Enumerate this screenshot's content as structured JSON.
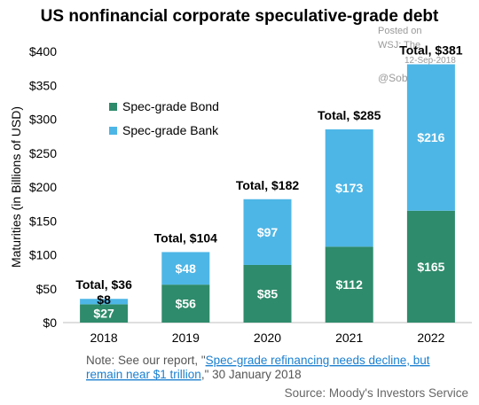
{
  "chart_data": {
    "type": "bar",
    "stacked": true,
    "title": "US nonfinancial corporate speculative-grade debt",
    "ylabel": "Maturities (in Billions of USD)",
    "xlabel": "",
    "ylim": [
      0,
      400
    ],
    "yticks": [
      "$0",
      "$50",
      "$100",
      "$150",
      "$200",
      "$250",
      "$300",
      "$350",
      "$400"
    ],
    "categories": [
      "2018",
      "2019",
      "2020",
      "2021",
      "2022"
    ],
    "series": [
      {
        "name": "Spec-grade Bond",
        "color": "#2e8b6b",
        "values": [
          27,
          56,
          85,
          112,
          165
        ],
        "labels": [
          "$27",
          "$56",
          "$85",
          "$112",
          "$165"
        ]
      },
      {
        "name": "Spec-grade Bank",
        "color": "#4db6e6",
        "values": [
          8,
          48,
          97,
          173,
          216
        ],
        "labels": [
          "$8",
          "$48",
          "$97",
          "$173",
          "$216"
        ]
      }
    ],
    "totals": [
      "Total, $36",
      "Total, $104",
      "Total, $182",
      "Total, $285",
      "Total, $381"
    ],
    "legend_position": "upper-left",
    "grid": false
  },
  "watermark": {
    "posted_on": "Posted on",
    "wsj": "WSJ: The",
    "date": "12-Sep-2018",
    "handle": "@SoberLook"
  },
  "note": {
    "prefix": "Note: See our report, \"",
    "link_line1": "Spec-grade refinancing needs decline, but",
    "link_line2": "remain near $1 trillion",
    "suffix": ",\" 30 January 2018"
  },
  "source": "Source: Moody's Investors Service"
}
